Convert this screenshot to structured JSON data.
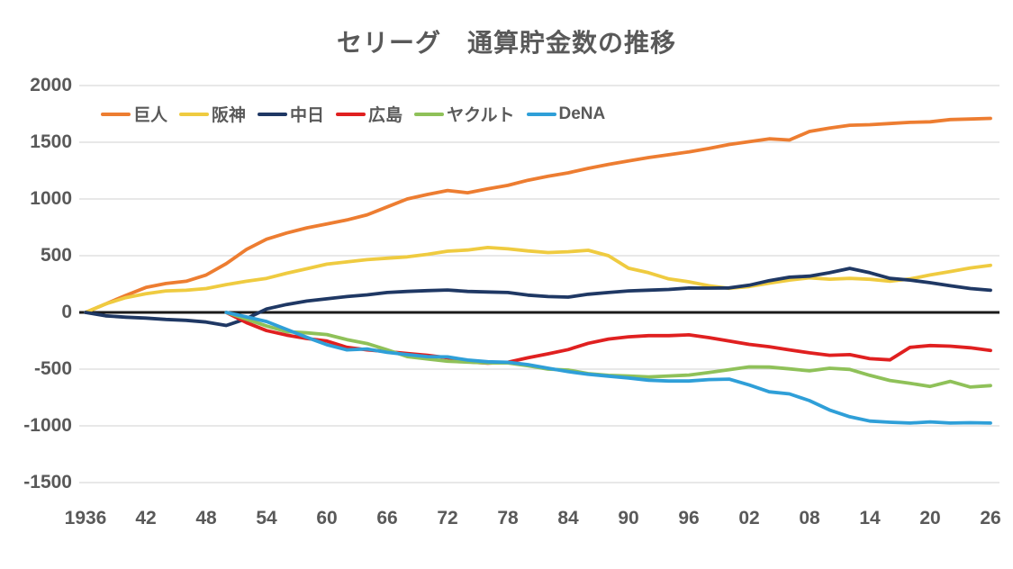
{
  "title": "セリーグ　通算貯金数の推移",
  "colors": {
    "background": "#FFFFFF",
    "text": "#595959",
    "gridline": "#D9D9D9",
    "zero_line": "#1A1A1A"
  },
  "chart_data": {
    "type": "line",
    "title": "セリーグ　通算貯金数の推移",
    "xlabel": "",
    "ylabel": "",
    "x_range": [
      1936,
      2026
    ],
    "ylim": [
      -1500,
      2000
    ],
    "grid": true,
    "legend_position": "top-left-inside",
    "y_ticks": [
      2000,
      1500,
      1000,
      500,
      0,
      -500,
      -1000,
      -1500
    ],
    "x_ticks": [
      {
        "label": "1936",
        "year": 1936
      },
      {
        "label": "42",
        "year": 1942
      },
      {
        "label": "48",
        "year": 1948
      },
      {
        "label": "54",
        "year": 1954
      },
      {
        "label": "60",
        "year": 1960
      },
      {
        "label": "66",
        "year": 1966
      },
      {
        "label": "72",
        "year": 1972
      },
      {
        "label": "78",
        "year": 1978
      },
      {
        "label": "84",
        "year": 1984
      },
      {
        "label": "90",
        "year": 1990
      },
      {
        "label": "96",
        "year": 1996
      },
      {
        "label": "02",
        "year": 2002
      },
      {
        "label": "08",
        "year": 2008
      },
      {
        "label": "14",
        "year": 2014
      },
      {
        "label": "20",
        "year": 2020
      },
      {
        "label": "26",
        "year": 2026
      }
    ],
    "series": [
      {
        "id": "giants",
        "name": "巨人",
        "color": "#ED7D31",
        "x": [
          1936,
          1938,
          1940,
          1942,
          1944,
          1946,
          1948,
          1950,
          1952,
          1954,
          1956,
          1958,
          1960,
          1962,
          1964,
          1966,
          1968,
          1970,
          1972,
          1974,
          1976,
          1978,
          1980,
          1982,
          1984,
          1986,
          1988,
          1990,
          1992,
          1994,
          1996,
          1998,
          2000,
          2002,
          2004,
          2006,
          2008,
          2010,
          2012,
          2014,
          2016,
          2018,
          2020,
          2022,
          2024,
          2026
        ],
        "values": [
          0,
          75,
          150,
          220,
          255,
          275,
          330,
          430,
          555,
          645,
          700,
          745,
          780,
          815,
          860,
          930,
          1000,
          1040,
          1075,
          1055,
          1090,
          1120,
          1165,
          1200,
          1230,
          1270,
          1305,
          1335,
          1365,
          1390,
          1415,
          1445,
          1480,
          1505,
          1530,
          1520,
          1595,
          1625,
          1650,
          1655,
          1665,
          1675,
          1680,
          1700,
          1705,
          1710
        ]
      },
      {
        "id": "hanshin",
        "name": "阪神",
        "color": "#EFCB40",
        "x": [
          1936,
          1938,
          1940,
          1942,
          1944,
          1946,
          1948,
          1950,
          1952,
          1954,
          1956,
          1958,
          1960,
          1962,
          1964,
          1966,
          1968,
          1970,
          1972,
          1974,
          1976,
          1978,
          1980,
          1982,
          1984,
          1986,
          1988,
          1990,
          1992,
          1994,
          1996,
          1998,
          2000,
          2002,
          2004,
          2006,
          2008,
          2010,
          2012,
          2014,
          2016,
          2018,
          2020,
          2022,
          2024,
          2026
        ],
        "values": [
          0,
          75,
          130,
          165,
          190,
          195,
          210,
          245,
          275,
          300,
          345,
          385,
          425,
          445,
          465,
          478,
          490,
          512,
          540,
          550,
          572,
          560,
          542,
          528,
          535,
          548,
          500,
          390,
          350,
          295,
          270,
          235,
          213,
          228,
          258,
          285,
          305,
          293,
          300,
          292,
          275,
          295,
          330,
          360,
          392,
          415
        ]
      },
      {
        "id": "chunichi",
        "name": "中日",
        "color": "#1F3864",
        "x": [
          1936,
          1938,
          1940,
          1942,
          1944,
          1946,
          1948,
          1950,
          1952,
          1954,
          1956,
          1958,
          1960,
          1962,
          1964,
          1966,
          1968,
          1970,
          1972,
          1974,
          1976,
          1978,
          1980,
          1982,
          1984,
          1986,
          1988,
          1990,
          1992,
          1994,
          1996,
          1998,
          2000,
          2002,
          2004,
          2006,
          2008,
          2010,
          2012,
          2014,
          2016,
          2018,
          2020,
          2022,
          2024,
          2026
        ],
        "values": [
          0,
          -30,
          -42,
          -50,
          -62,
          -70,
          -85,
          -115,
          -55,
          30,
          70,
          100,
          120,
          140,
          155,
          175,
          185,
          192,
          198,
          185,
          180,
          175,
          152,
          140,
          135,
          160,
          175,
          190,
          196,
          202,
          215,
          214,
          216,
          240,
          280,
          310,
          320,
          350,
          388,
          350,
          300,
          285,
          262,
          235,
          210,
          195
        ]
      },
      {
        "id": "hiroshima",
        "name": "広島",
        "color": "#E02020",
        "x": [
          1950,
          1952,
          1954,
          1956,
          1958,
          1960,
          1962,
          1964,
          1966,
          1968,
          1970,
          1972,
          1974,
          1976,
          1978,
          1980,
          1982,
          1984,
          1986,
          1988,
          1990,
          1992,
          1994,
          1996,
          1998,
          2000,
          2002,
          2004,
          2006,
          2008,
          2010,
          2012,
          2014,
          2016,
          2018,
          2020,
          2022,
          2024,
          2026
        ],
        "values": [
          0,
          -90,
          -160,
          -200,
          -230,
          -252,
          -308,
          -330,
          -345,
          -362,
          -378,
          -400,
          -435,
          -448,
          -440,
          -400,
          -365,
          -328,
          -272,
          -235,
          -215,
          -205,
          -205,
          -198,
          -222,
          -252,
          -282,
          -302,
          -330,
          -356,
          -378,
          -372,
          -408,
          -418,
          -308,
          -292,
          -298,
          -312,
          -335
        ]
      },
      {
        "id": "yakult",
        "name": "ヤクルト",
        "color": "#8FC159",
        "x": [
          1950,
          1952,
          1954,
          1956,
          1958,
          1960,
          1962,
          1964,
          1966,
          1968,
          1970,
          1972,
          1974,
          1976,
          1978,
          1980,
          1982,
          1984,
          1986,
          1988,
          1990,
          1992,
          1994,
          1996,
          1998,
          2000,
          2002,
          2004,
          2006,
          2008,
          2010,
          2012,
          2014,
          2016,
          2018,
          2020,
          2022,
          2024,
          2026
        ],
        "values": [
          0,
          -60,
          -120,
          -170,
          -180,
          -195,
          -240,
          -275,
          -330,
          -390,
          -410,
          -430,
          -438,
          -445,
          -445,
          -470,
          -500,
          -508,
          -540,
          -555,
          -560,
          -568,
          -560,
          -552,
          -530,
          -505,
          -480,
          -482,
          -498,
          -515,
          -492,
          -502,
          -555,
          -600,
          -625,
          -652,
          -608,
          -658,
          -645
        ]
      },
      {
        "id": "dena",
        "name": "DeNA",
        "color": "#2F9FD8",
        "x": [
          1950,
          1952,
          1954,
          1956,
          1958,
          1960,
          1962,
          1964,
          1966,
          1968,
          1970,
          1972,
          1974,
          1976,
          1978,
          1980,
          1982,
          1984,
          1986,
          1988,
          1990,
          1992,
          1994,
          1996,
          1998,
          2000,
          2002,
          2004,
          2006,
          2008,
          2010,
          2012,
          2014,
          2016,
          2018,
          2020,
          2022,
          2024,
          2026
        ],
        "values": [
          0,
          -40,
          -80,
          -150,
          -220,
          -285,
          -330,
          -322,
          -352,
          -372,
          -390,
          -392,
          -420,
          -435,
          -440,
          -460,
          -492,
          -522,
          -545,
          -562,
          -578,
          -598,
          -605,
          -605,
          -592,
          -588,
          -640,
          -700,
          -718,
          -778,
          -860,
          -920,
          -958,
          -968,
          -975,
          -965,
          -975,
          -972,
          -975
        ]
      }
    ]
  }
}
